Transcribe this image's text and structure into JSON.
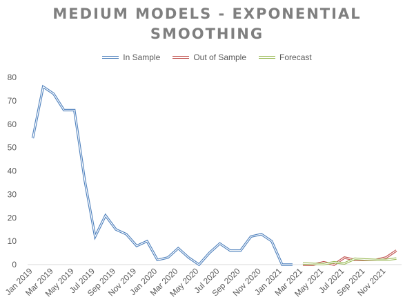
{
  "chart_data": {
    "type": "line",
    "title": "MEDIUM MODELS - EXPONENTIAL SMOOTHING",
    "xlabel": "",
    "ylabel": "",
    "ylim": [
      0,
      80
    ],
    "yticks": [
      0,
      10,
      20,
      30,
      40,
      50,
      60,
      70,
      80
    ],
    "grid": false,
    "legend_position": "top",
    "x": [
      "2019-01",
      "2019-02",
      "2019-03",
      "2019-04",
      "2019-05",
      "2019-06",
      "2019-07",
      "2019-08",
      "2019-09",
      "2019-10",
      "2019-11",
      "2019-12",
      "2020-01",
      "2020-02",
      "2020-03",
      "2020-04",
      "2020-05",
      "2020-06",
      "2020-07",
      "2020-08",
      "2020-09",
      "2020-10",
      "2020-11",
      "2020-12",
      "2021-01",
      "2021-02",
      "2021-03",
      "2021-04",
      "2021-05",
      "2021-06",
      "2021-07",
      "2021-08",
      "2021-09",
      "2021-10",
      "2021-11",
      "2021-12"
    ],
    "xtick_labels": [
      "Jan 2019",
      "Mar 2019",
      "May 2019",
      "Jul 2019",
      "Sep 2019",
      "Nov 2019",
      "Jan 2020",
      "Mar 2020",
      "May 2020",
      "Jul 2020",
      "Sep 2020",
      "Nov 2020",
      "Jan 2021",
      "Mar 2021",
      "May 2021",
      "Jul 2021",
      "Sep 2021",
      "Nov 2021"
    ],
    "series": [
      {
        "name": "In Sample",
        "color": "#4f81bd",
        "values": [
          54,
          76,
          73,
          66,
          66,
          36,
          12,
          21,
          15,
          13,
          8,
          10,
          2,
          3,
          7,
          3,
          0,
          5,
          9,
          6,
          6,
          12,
          13,
          10,
          0,
          0,
          null,
          null,
          null,
          null,
          null,
          null,
          null,
          null,
          null,
          null
        ]
      },
      {
        "name": "Out of Sample",
        "color": "#c0504d",
        "values": [
          null,
          null,
          null,
          null,
          null,
          null,
          null,
          null,
          null,
          null,
          null,
          null,
          null,
          null,
          null,
          null,
          null,
          null,
          null,
          null,
          null,
          null,
          null,
          null,
          null,
          null,
          0,
          0,
          1,
          0,
          3,
          2,
          2,
          2,
          3,
          6
        ]
      },
      {
        "name": "Forecast",
        "color": "#9bbb59",
        "values": [
          null,
          null,
          null,
          null,
          null,
          null,
          null,
          null,
          null,
          null,
          null,
          null,
          null,
          null,
          null,
          null,
          null,
          null,
          null,
          null,
          null,
          null,
          null,
          null,
          null,
          null,
          0.5,
          0.3,
          0.2,
          1.0,
          0.5,
          2.5,
          2.2,
          2.0,
          2.0,
          2.6
        ]
      }
    ]
  }
}
